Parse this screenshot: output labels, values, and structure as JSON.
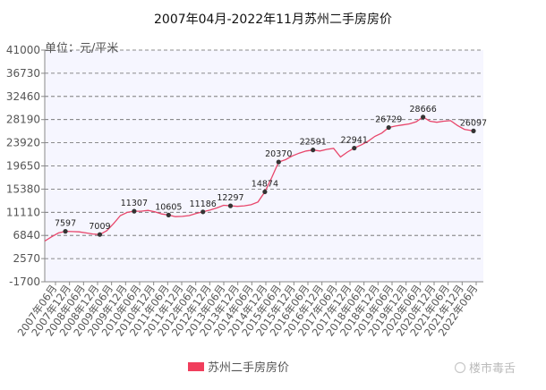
{
  "chart_data": {
    "type": "line",
    "title": "2007年04月-2022年11月苏州二手房房价",
    "unit_label": "单位：元/平米",
    "y_ticks": [
      -1700,
      2570,
      6840,
      11110,
      15380,
      19650,
      23920,
      28190,
      32460,
      36730,
      41000
    ],
    "ylim": [
      -1700,
      41000
    ],
    "x_tick_labels": [
      "2007年06月",
      "2007年12月",
      "2008年06月",
      "2008年12月",
      "2009年06月",
      "2009年12月",
      "2010年06月",
      "2010年12月",
      "2011年06月",
      "2011年12月",
      "2012年06月",
      "2012年12月",
      "2013年06月",
      "2013年12月",
      "2014年06月",
      "2014年12月",
      "2015年06月",
      "2015年12月",
      "2016年06月",
      "2016年12月",
      "2017年06月",
      "2017年12月",
      "2018年06月",
      "2018年12月",
      "2019年06月",
      "2019年12月",
      "2020年06月",
      "2020年12月",
      "2021年06月",
      "2021年12月",
      "2022年06月"
    ],
    "grid": true,
    "legend_position": "bottom",
    "series": [
      {
        "name": "苏州二手房房价",
        "color": "#e8466b",
        "points": [
          [
            "2007-04",
            5800
          ],
          [
            "2007-07",
            6600
          ],
          [
            "2007-10",
            7300
          ],
          [
            "2008-01",
            7597
          ],
          [
            "2008-04",
            7550
          ],
          [
            "2008-07",
            7500
          ],
          [
            "2008-10",
            7300
          ],
          [
            "2009-01",
            7100
          ],
          [
            "2009-04",
            7009
          ],
          [
            "2009-07",
            7700
          ],
          [
            "2009-10",
            9000
          ],
          [
            "2010-01",
            10500
          ],
          [
            "2010-04",
            11100
          ],
          [
            "2010-07",
            11307
          ],
          [
            "2010-10",
            11300
          ],
          [
            "2011-01",
            11450
          ],
          [
            "2011-04",
            11200
          ],
          [
            "2011-07",
            10800
          ],
          [
            "2011-10",
            10605
          ],
          [
            "2012-01",
            10300
          ],
          [
            "2012-04",
            10350
          ],
          [
            "2012-07",
            10500
          ],
          [
            "2012-10",
            10900
          ],
          [
            "2013-01",
            11186
          ],
          [
            "2013-04",
            11500
          ],
          [
            "2013-07",
            11900
          ],
          [
            "2013-10",
            12400
          ],
          [
            "2014-01",
            12297
          ],
          [
            "2014-04",
            12200
          ],
          [
            "2014-07",
            12300
          ],
          [
            "2014-10",
            12500
          ],
          [
            "2015-01",
            13000
          ],
          [
            "2015-04",
            14874
          ],
          [
            "2015-07",
            17500
          ],
          [
            "2015-10",
            20370
          ],
          [
            "2016-01",
            20800
          ],
          [
            "2016-04",
            21500
          ],
          [
            "2016-07",
            22000
          ],
          [
            "2016-10",
            22400
          ],
          [
            "2017-01",
            22591
          ],
          [
            "2017-04",
            22400
          ],
          [
            "2017-07",
            22700
          ],
          [
            "2017-10",
            22900
          ],
          [
            "2018-01",
            21300
          ],
          [
            "2018-04",
            22200
          ],
          [
            "2018-07",
            22941
          ],
          [
            "2018-10",
            23500
          ],
          [
            "2019-01",
            24200
          ],
          [
            "2019-04",
            25100
          ],
          [
            "2019-07",
            25700
          ],
          [
            "2019-10",
            26729
          ],
          [
            "2020-01",
            27000
          ],
          [
            "2020-04",
            27200
          ],
          [
            "2020-07",
            27400
          ],
          [
            "2020-10",
            27800
          ],
          [
            "2021-01",
            28666
          ],
          [
            "2021-04",
            27900
          ],
          [
            "2021-07",
            27700
          ],
          [
            "2021-10",
            27900
          ],
          [
            "2022-01",
            28000
          ],
          [
            "2022-04",
            27100
          ],
          [
            "2022-07",
            26400
          ],
          [
            "2022-11",
            26097
          ]
        ],
        "labeled_points": [
          {
            "x": "2008-01",
            "value": 7597,
            "label": "7597"
          },
          {
            "x": "2009-04",
            "value": 7009,
            "label": "7009"
          },
          {
            "x": "2010-07",
            "value": 11307,
            "label": "11307"
          },
          {
            "x": "2011-10",
            "value": 10605,
            "label": "10605"
          },
          {
            "x": "2013-01",
            "value": 11186,
            "label": "11186"
          },
          {
            "x": "2014-01",
            "value": 12297,
            "label": "12297"
          },
          {
            "x": "2015-04",
            "value": 14874,
            "label": "14874"
          },
          {
            "x": "2015-10",
            "value": 20370,
            "label": "20370"
          },
          {
            "x": "2017-01",
            "value": 22591,
            "label": "22591"
          },
          {
            "x": "2018-07",
            "value": 22941,
            "label": "22941"
          },
          {
            "x": "2019-10",
            "value": 26729,
            "label": "26729"
          },
          {
            "x": "2021-01",
            "value": 28666,
            "label": "28666"
          },
          {
            "x": "2022-11",
            "value": 26097,
            "label": "26097"
          }
        ]
      }
    ]
  },
  "legend": {
    "label": "苏州二手房房价",
    "color": "#f03e5c"
  },
  "watermark": {
    "text": "楼市毒舌"
  }
}
